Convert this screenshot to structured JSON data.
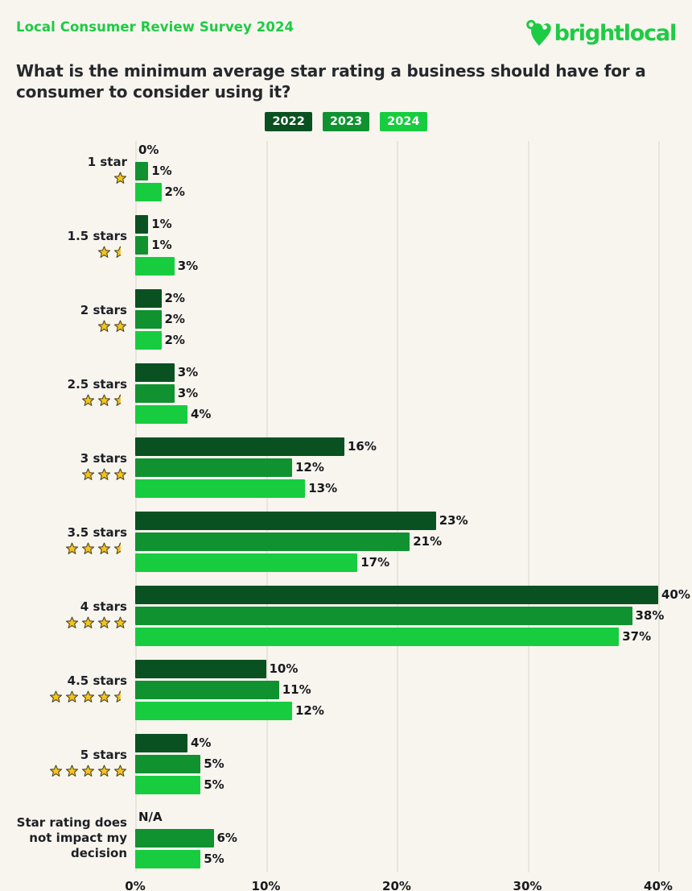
{
  "header": {
    "eyebrow": "Local Consumer Review Survey 2024",
    "title": "What is the minimum average star rating a business should have for a consumer to consider using it?",
    "logo_text": "brightlocal"
  },
  "legend": {
    "items": [
      {
        "label": "2022",
        "color": "#0a5121"
      },
      {
        "label": "2023",
        "color": "#109230"
      },
      {
        "label": "2024",
        "color": "#17cd3f"
      }
    ]
  },
  "colors": {
    "background": "#f8f5ef",
    "brand_green": "#1ecb44",
    "text_dark": "#23262a",
    "gridline": "#e8e5dd",
    "star_fill": "#f4c41e",
    "star_outline": "#4d451c"
  },
  "chart_data": {
    "type": "bar",
    "orientation": "horizontal",
    "title": "What is the minimum average star rating a business should have for a consumer to consider using it?",
    "xlabel": "",
    "ylabel": "",
    "xlim": [
      0,
      40
    ],
    "x_ticks": [
      "0%",
      "10%",
      "20%",
      "30%",
      "40%"
    ],
    "grid": true,
    "legend_position": "top-center",
    "categories": [
      "1 star",
      "1.5 stars",
      "2 stars",
      "2.5 stars",
      "3 stars",
      "3.5 stars",
      "4 stars",
      "4.5 stars",
      "5 stars",
      "Star rating does not impact my decision"
    ],
    "category_star_ratings": [
      1,
      1.5,
      2,
      2.5,
      3,
      3.5,
      4,
      4.5,
      5,
      null
    ],
    "series": [
      {
        "name": "2022",
        "color": "#0a5121",
        "values": [
          0,
          1,
          2,
          3,
          16,
          23,
          40,
          10,
          4,
          null
        ],
        "display_labels": [
          "0%",
          "1%",
          "2%",
          "3%",
          "16%",
          "23%",
          "40%",
          "10%",
          "4%",
          "N/A"
        ]
      },
      {
        "name": "2023",
        "color": "#109230",
        "values": [
          1,
          1,
          2,
          3,
          12,
          21,
          38,
          11,
          5,
          6
        ],
        "display_labels": [
          "1%",
          "1%",
          "2%",
          "3%",
          "12%",
          "21%",
          "38%",
          "11%",
          "5%",
          "6%"
        ]
      },
      {
        "name": "2024",
        "color": "#17cd3f",
        "values": [
          2,
          3,
          2,
          4,
          13,
          17,
          37,
          12,
          5,
          5
        ],
        "display_labels": [
          "2%",
          "3%",
          "2%",
          "4%",
          "13%",
          "17%",
          "37%",
          "12%",
          "5%",
          "5%"
        ]
      }
    ]
  }
}
